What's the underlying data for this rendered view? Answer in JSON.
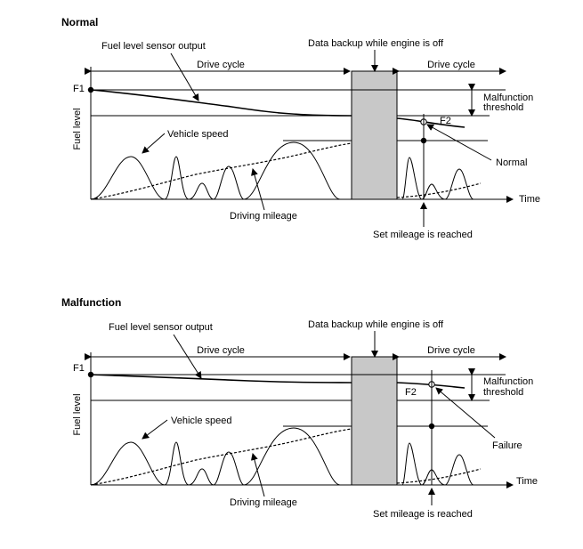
{
  "panels": {
    "normal": {
      "title": "Normal",
      "sensor_label": "Fuel level sensor output",
      "backup_label": "Data backup while engine is off",
      "drive_cycle_1": "Drive cycle",
      "drive_cycle_2": "Drive cycle",
      "f1": "F1",
      "f2": "F2",
      "y_label": "Fuel level",
      "malfunction_1": "Malfunction",
      "malfunction_2": "threshold",
      "vehicle_speed": "Vehicle speed",
      "result": "Normal",
      "time": "Time",
      "driving_mileage": "Driving mileage",
      "set_mileage": "Set mileage is reached"
    },
    "malfunction": {
      "title": "Malfunction",
      "sensor_label": "Fuel level sensor output",
      "backup_label": "Data backup while engine is off",
      "drive_cycle_1": "Drive cycle",
      "drive_cycle_2": "Drive cycle",
      "f1": "F1",
      "f2": "F2",
      "y_label": "Fuel level",
      "malfunction_1": "Malfunction",
      "malfunction_2": "threshold",
      "vehicle_speed": "Vehicle speed",
      "result": "Failure",
      "time": "Time",
      "driving_mileage": "Driving mileage",
      "set_mileage": "Set mileage is reached"
    }
  }
}
